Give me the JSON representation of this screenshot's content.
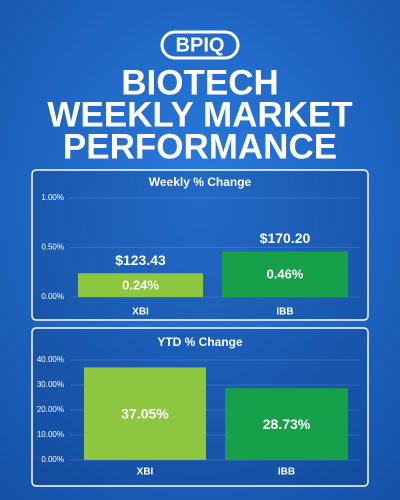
{
  "header": {
    "logo": "BPIQ",
    "title": [
      "BIOTECH",
      "WEEKLY MARKET",
      "PERFORMANCE"
    ]
  },
  "chart_data": [
    {
      "type": "bar",
      "title": "Weekly % Change",
      "categories": [
        "XBI",
        "IBB"
      ],
      "values": [
        0.24,
        0.46
      ],
      "value_labels": [
        "0.24%",
        "0.46%"
      ],
      "annotations": [
        "$123.43",
        "$170.20"
      ],
      "colors": [
        "#8dc63f",
        "#16a04a"
      ],
      "ylim": [
        0,
        1
      ],
      "yticks": [
        {
          "value": 0,
          "label": "0.00%"
        },
        {
          "value": 0.5,
          "label": "0.50%"
        },
        {
          "value": 1,
          "label": "1.00%"
        }
      ]
    },
    {
      "type": "bar",
      "title": "YTD % Change",
      "categories": [
        "XBI",
        "IBB"
      ],
      "values": [
        37.05,
        28.73
      ],
      "value_labels": [
        "37.05%",
        "28.73%"
      ],
      "colors": [
        "#8dc63f",
        "#16a04a"
      ],
      "ylim": [
        0,
        40
      ],
      "yticks": [
        {
          "value": 0,
          "label": "0.00%"
        },
        {
          "value": 10,
          "label": "10.00%"
        },
        {
          "value": 20,
          "label": "20.00%"
        },
        {
          "value": 30,
          "label": "30.00%"
        },
        {
          "value": 40,
          "label": "40.00%"
        }
      ]
    }
  ]
}
